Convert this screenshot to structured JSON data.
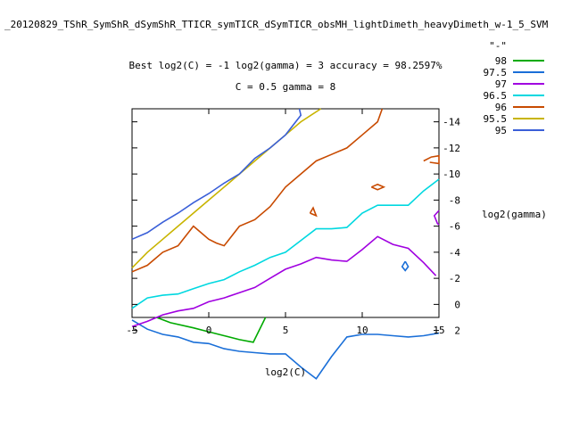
{
  "chart_data": {
    "type": "contour",
    "title": "_20120829_TShR_SymShR_dSymShR_TTICR_symTICR_dSymTICR_obsMH_lightDimeth_heavyDimeth_w-1_5_SVM",
    "subtitle_line1": "Best log2(C) = -1  log2(gamma) = 3  accuracy = 98.2597%",
    "subtitle_line2": "C = 0.5  gamma = 8",
    "xlabel": "log2(C)",
    "ylabel": "log2(gamma)",
    "xlim": [
      -5,
      15
    ],
    "ylim": [
      1,
      15
    ],
    "y_reversed": true,
    "x_ticks": [
      -5,
      0,
      5,
      10,
      15
    ],
    "y_ticks": [
      2,
      0,
      -2,
      -4,
      -6,
      -8,
      -10,
      -12,
      -14
    ],
    "legend_position": "top-right",
    "legend_header": "\"-\"",
    "series": [
      {
        "name": "98",
        "color": "#00aa00",
        "segments": [
          [
            [
              -3.4,
              1
            ],
            [
              -2.5,
              1.4
            ],
            [
              -1,
              1.8
            ],
            [
              0,
              2.1
            ],
            [
              1,
              2.4
            ],
            [
              2,
              2.7
            ],
            [
              2.9,
              2.9
            ],
            [
              3.7,
              1
            ]
          ]
        ]
      },
      {
        "name": "97.5",
        "color": "#1a6fd8",
        "segments": [
          [
            [
              -5,
              1.2
            ],
            [
              -4,
              1.9
            ],
            [
              -3,
              2.3
            ],
            [
              -2,
              2.5
            ],
            [
              -1,
              2.9
            ],
            [
              0,
              3.0
            ],
            [
              1,
              3.4
            ],
            [
              2,
              3.6
            ],
            [
              3,
              3.7
            ],
            [
              4,
              3.8
            ],
            [
              5,
              3.8
            ],
            [
              6,
              4.8
            ],
            [
              7,
              5.7
            ],
            [
              8,
              4.0
            ],
            [
              9,
              2.5
            ],
            [
              10,
              2.3
            ],
            [
              11,
              2.3
            ],
            [
              12,
              2.4
            ],
            [
              13,
              2.5
            ],
            [
              14,
              2.4
            ],
            [
              15,
              2.2
            ]
          ],
          [
            [
              12.8,
              -3.3
            ],
            [
              13,
              -2.9
            ],
            [
              12.8,
              -2.6
            ],
            [
              12.6,
              -2.9
            ],
            [
              12.8,
              -3.3
            ]
          ]
        ]
      },
      {
        "name": "97",
        "color": "#a000e0",
        "segments": [
          [
            [
              -5,
              1.7
            ],
            [
              -4,
              1.3
            ],
            [
              -3,
              0.8
            ],
            [
              -2,
              0.5
            ],
            [
              -1,
              0.3
            ],
            [
              0,
              -0.2
            ],
            [
              1,
              -0.5
            ],
            [
              2,
              -0.9
            ],
            [
              3,
              -1.3
            ],
            [
              4,
              -2.0
            ],
            [
              5,
              -2.7
            ],
            [
              6,
              -3.1
            ],
            [
              7,
              -3.6
            ],
            [
              8,
              -3.4
            ],
            [
              9,
              -3.3
            ],
            [
              10,
              -4.2
            ],
            [
              11,
              -5.2
            ],
            [
              12,
              -4.6
            ],
            [
              13,
              -4.3
            ],
            [
              14,
              -3.2
            ],
            [
              14.8,
              -2.2
            ]
          ],
          [
            [
              15,
              -7.2
            ],
            [
              14.7,
              -6.8
            ],
            [
              14.9,
              -6.2
            ],
            [
              15,
              -6.1
            ]
          ]
        ]
      },
      {
        "name": "96.5",
        "color": "#00d8e0",
        "segments": [
          [
            [
              -5,
              0.3
            ],
            [
              -4,
              -0.5
            ],
            [
              -3,
              -0.7
            ],
            [
              -2,
              -0.8
            ],
            [
              -1,
              -1.2
            ],
            [
              0,
              -1.6
            ],
            [
              1,
              -1.9
            ],
            [
              2,
              -2.5
            ],
            [
              3,
              -3.0
            ],
            [
              4,
              -3.6
            ],
            [
              5,
              -4.0
            ],
            [
              6,
              -4.9
            ],
            [
              7,
              -5.8
            ],
            [
              8,
              -5.8
            ],
            [
              9,
              -5.9
            ],
            [
              10,
              -7.0
            ],
            [
              11,
              -7.6
            ],
            [
              12,
              -7.6
            ],
            [
              13,
              -7.6
            ],
            [
              14,
              -8.7
            ],
            [
              15,
              -9.6
            ]
          ]
        ]
      },
      {
        "name": "96",
        "color": "#c84a00",
        "segments": [
          [
            [
              -5,
              -2.5
            ],
            [
              -4,
              -3.0
            ],
            [
              -3,
              -4.0
            ],
            [
              -2,
              -4.5
            ],
            [
              -1,
              -6.0
            ],
            [
              0,
              -5.0
            ],
            [
              0.5,
              -4.7
            ],
            [
              1,
              -4.5
            ],
            [
              2,
              -6.0
            ],
            [
              3,
              -6.5
            ],
            [
              4,
              -7.5
            ],
            [
              5,
              -9.0
            ],
            [
              6,
              -10.0
            ],
            [
              7,
              -11.0
            ],
            [
              8,
              -11.5
            ],
            [
              9,
              -12.0
            ],
            [
              10,
              -13.0
            ],
            [
              11,
              -14.0
            ],
            [
              11.3,
              -15
            ]
          ],
          [
            [
              6.6,
              -7.0
            ],
            [
              6.8,
              -7.4
            ],
            [
              7.0,
              -6.8
            ],
            [
              6.6,
              -7.0
            ]
          ],
          [
            [
              10.6,
              -9.0
            ],
            [
              11,
              -9.2
            ],
            [
              11.4,
              -9.0
            ],
            [
              11,
              -8.8
            ],
            [
              10.6,
              -9.0
            ]
          ],
          [
            [
              14,
              -11.0
            ],
            [
              14.5,
              -11.3
            ],
            [
              15,
              -11.4
            ],
            [
              15,
              -10.8
            ],
            [
              14.4,
              -10.9
            ]
          ]
        ]
      },
      {
        "name": "95.5",
        "color": "#c8b400",
        "segments": [
          [
            [
              -5,
              -2.8
            ],
            [
              -4,
              -4.0
            ],
            [
              -3,
              -5.0
            ],
            [
              -2,
              -6.0
            ],
            [
              -1,
              -7.0
            ],
            [
              0,
              -8.0
            ],
            [
              1,
              -9.0
            ],
            [
              2,
              -10.0
            ],
            [
              3,
              -11.0
            ],
            [
              4,
              -12.0
            ],
            [
              5,
              -13.0
            ],
            [
              6,
              -14.0
            ],
            [
              7.3,
              -15
            ]
          ]
        ]
      },
      {
        "name": "95",
        "color": "#3a5fd8",
        "segments": [
          [
            [
              -5,
              -5.0
            ],
            [
              -4,
              -5.5
            ],
            [
              -3,
              -6.3
            ],
            [
              -2,
              -7.0
            ],
            [
              -1,
              -7.8
            ],
            [
              0,
              -8.5
            ],
            [
              1,
              -9.3
            ],
            [
              2,
              -10.0
            ],
            [
              3,
              -11.2
            ],
            [
              4,
              -12.0
            ],
            [
              5,
              -13.0
            ],
            [
              6,
              -14.5
            ],
            [
              5.9,
              -15
            ]
          ]
        ]
      }
    ]
  }
}
